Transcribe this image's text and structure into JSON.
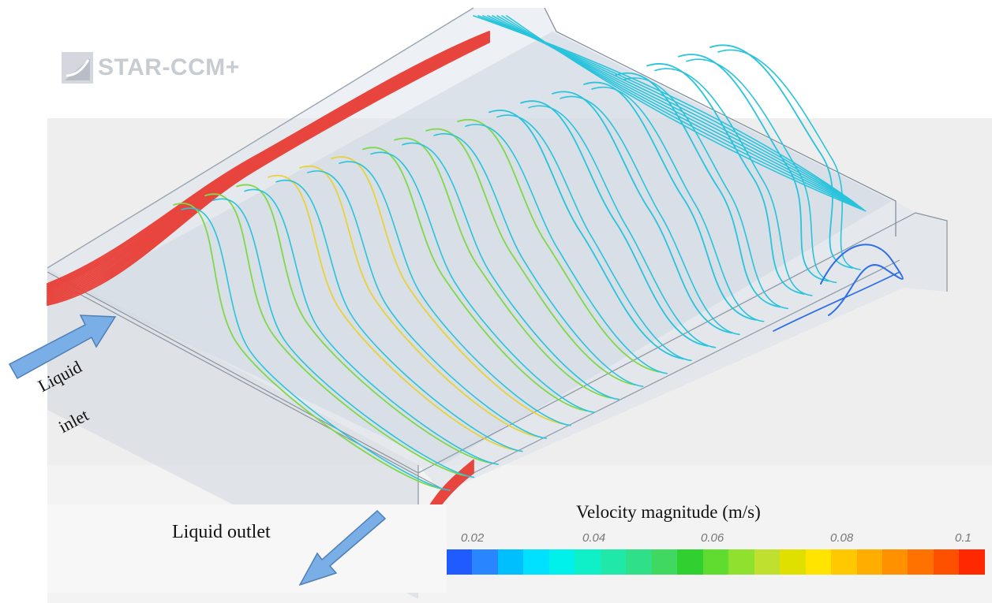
{
  "logo": {
    "text": "STAR-CCM+",
    "icon": "star-ccm-logo-icon"
  },
  "labels": {
    "inlet_line1": "Liquid",
    "inlet_line2": "inlet",
    "outlet": "Liquid outlet"
  },
  "colorbar": {
    "title": "Velocity magnitude (m/s)",
    "ticks": [
      "0.02",
      "0.04",
      "0.06",
      "0.08",
      "0.1"
    ],
    "colors": [
      "#1f5bff",
      "#2a86ff",
      "#00bfff",
      "#00e0ff",
      "#00f0ec",
      "#10f0c8",
      "#20e8a8",
      "#30e088",
      "#40d860",
      "#30d030",
      "#60dc30",
      "#90e030",
      "#c0e030",
      "#e0e000",
      "#ffe400",
      "#ffc800",
      "#ffae00",
      "#ff9000",
      "#ff7200",
      "#ff5000",
      "#ff2800"
    ]
  },
  "colors": {
    "slow": "#2f6fe8",
    "cyan": "#29c3dc",
    "green": "#7fd84a",
    "yellow": "#e6d23c",
    "fast": "#e8453e",
    "arrow": "#7aaee6"
  }
}
